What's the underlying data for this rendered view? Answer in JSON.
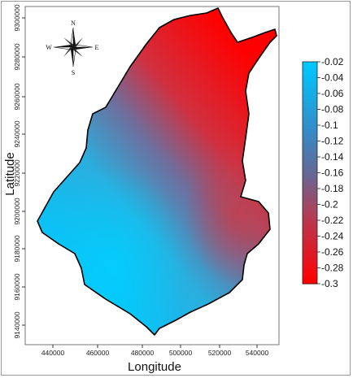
{
  "map": {
    "x_axis_title": "Longitude",
    "y_axis_title": "Latitude",
    "x_ticks": [
      "440000",
      "460000",
      "480000",
      "500000",
      "520000",
      "540000"
    ],
    "y_ticks": [
      "9300000",
      "9280000",
      "9260000",
      "9240000",
      "9220000",
      "9200000",
      "9180000",
      "9160000",
      "9140000"
    ],
    "compass": {
      "n": "N",
      "s": "S",
      "e": "E",
      "w": "W"
    },
    "colors": {
      "low": "#ff0000",
      "mid": "#4f7fb0",
      "high": "#00c8ff",
      "outline": "#000000"
    }
  },
  "legend": {
    "labels": [
      "-0.02",
      "-0.04",
      "-0.06",
      "-0.08",
      "-0.1",
      "-0.12",
      "-0.14",
      "-0.16",
      "-0.18",
      "-0.2",
      "-0.22",
      "-0.24",
      "-0.26",
      "-0.28",
      "-0.3"
    ]
  }
}
